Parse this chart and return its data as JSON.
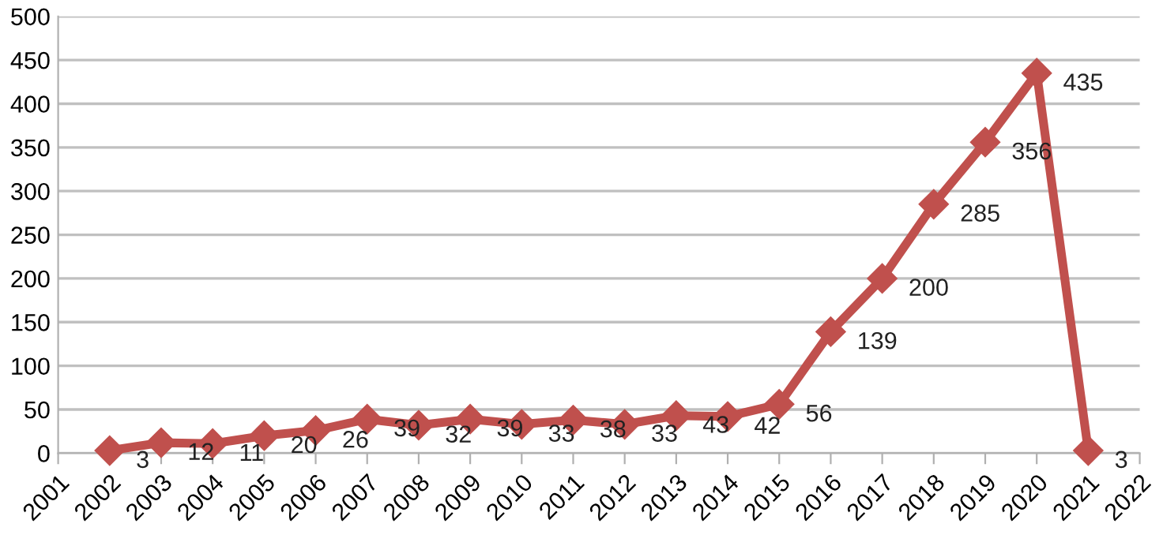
{
  "chart_data": {
    "type": "line",
    "categories": [
      "2001",
      "2002",
      "2003",
      "2004",
      "2005",
      "2006",
      "2007",
      "2008",
      "2009",
      "2010",
      "2011",
      "2012",
      "2013",
      "2014",
      "2015",
      "2016",
      "2017",
      "2018",
      "2019",
      "2020",
      "2021",
      "2022"
    ],
    "series": [
      {
        "color": "#c0504d",
        "values": [
          null,
          3,
          12,
          11,
          20,
          26,
          39,
          32,
          39,
          33,
          38,
          33,
          43,
          42,
          56,
          139,
          200,
          285,
          356,
          435,
          3,
          null
        ]
      }
    ],
    "ylim": [
      0,
      500
    ],
    "yticks": [
      0,
      50,
      100,
      150,
      200,
      250,
      300,
      350,
      400,
      450,
      500
    ],
    "grid": "y",
    "marker": "diamond",
    "line_style": "solid",
    "data_labels": true,
    "legend": false
  }
}
